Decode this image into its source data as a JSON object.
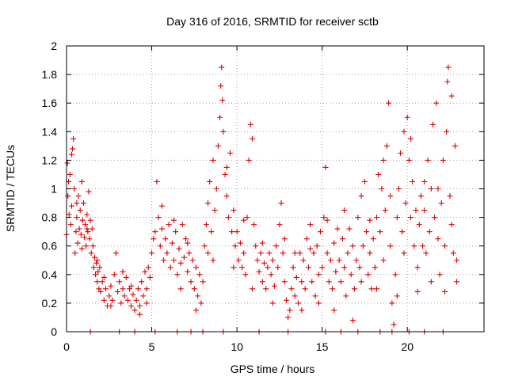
{
  "chart_data": {
    "type": "scatter",
    "title": "Day 316 of 2016, SRMTID for receiver sctb",
    "xlabel": "GPS time / hours",
    "ylabel": "SRMTID / TECUs",
    "xlim": [
      0,
      24.5
    ],
    "ylim": [
      0,
      2
    ],
    "x_ticks": [
      0,
      5,
      10,
      15,
      20
    ],
    "y_ticks": [
      0,
      0.2,
      0.4,
      0.6,
      0.8,
      1,
      1.2,
      1.4,
      1.6,
      1.8,
      2
    ],
    "x_tick_labels": [
      "0",
      "5",
      "10",
      "15",
      "20"
    ],
    "y_tick_labels": [
      "0",
      "0.2",
      "0.4",
      "0.6",
      "0.8",
      "1",
      "1.2",
      "1.4",
      "1.6",
      "1.8",
      "2"
    ],
    "grid": true,
    "marker": "+",
    "color": "#dd0000",
    "series": [
      {
        "name": "SRMTID",
        "points": [
          [
            0.0,
            0.68
          ],
          [
            0.05,
            1.18
          ],
          [
            0.08,
            0.95
          ],
          [
            0.12,
            1.05
          ],
          [
            0.15,
            0.82
          ],
          [
            0.2,
            1.1
          ],
          [
            0.25,
            0.75
          ],
          [
            0.3,
            1.24
          ],
          [
            0.35,
            1.28
          ],
          [
            0.4,
            1.35
          ],
          [
            0.45,
            1.0
          ],
          [
            0.5,
            0.55
          ],
          [
            0.55,
            0.7
          ],
          [
            0.6,
            0.8
          ],
          [
            0.65,
            0.62
          ],
          [
            0.7,
            0.95
          ],
          [
            0.75,
            0.72
          ],
          [
            0.8,
            0.85
          ],
          [
            0.85,
            0.68
          ],
          [
            0.9,
            1.05
          ],
          [
            0.95,
            0.78
          ],
          [
            1.0,
            0.9
          ],
          [
            1.05,
            0.66
          ],
          [
            1.1,
            0.75
          ],
          [
            1.15,
            0.6
          ],
          [
            1.2,
            0.82
          ],
          [
            1.25,
            0.7
          ],
          [
            1.3,
            0.98
          ],
          [
            1.35,
            0.65
          ],
          [
            1.4,
            0.78
          ],
          [
            1.45,
            0.55
          ],
          [
            1.5,
            0.72
          ],
          [
            1.55,
            0.6
          ],
          [
            1.6,
            0.45
          ],
          [
            1.65,
            0.52
          ],
          [
            1.7,
            0.4
          ],
          [
            1.75,
            0.48
          ],
          [
            1.8,
            0.35
          ],
          [
            1.85,
            0.42
          ],
          [
            1.9,
            0.3
          ],
          [
            1.95,
            0.45
          ],
          [
            2.0,
            0.28
          ],
          [
            2.1,
            0.35
          ],
          [
            2.2,
            0.22
          ],
          [
            2.3,
            0.3
          ],
          [
            2.4,
            0.18
          ],
          [
            2.5,
            0.25
          ],
          [
            2.6,
            0.32
          ],
          [
            2.7,
            0.22
          ],
          [
            2.8,
            0.4
          ],
          [
            2.9,
            0.55
          ],
          [
            3.0,
            0.28
          ],
          [
            3.1,
            0.35
          ],
          [
            3.2,
            0.2
          ],
          [
            3.3,
            0.3
          ],
          [
            3.4,
            0.25
          ],
          [
            3.5,
            0.38
          ],
          [
            3.6,
            0.22
          ],
          [
            3.7,
            0.3
          ],
          [
            3.8,
            0.18
          ],
          [
            3.9,
            0.26
          ],
          [
            4.0,
            0.15
          ],
          [
            4.1,
            0.22
          ],
          [
            4.2,
            0.3
          ],
          [
            4.3,
            0.18
          ],
          [
            4.4,
            0.35
          ],
          [
            4.5,
            0.25
          ],
          [
            4.6,
            0.42
          ],
          [
            4.7,
            0.3
          ],
          [
            4.8,
            0.45
          ],
          [
            4.9,
            0.38
          ],
          [
            5.0,
            0.55
          ],
          [
            5.1,
            0.65
          ],
          [
            5.2,
            0.7
          ],
          [
            5.3,
            1.05
          ],
          [
            5.4,
            0.8
          ],
          [
            5.5,
            0.6
          ],
          [
            5.6,
            0.72
          ],
          [
            5.7,
            0.5
          ],
          [
            5.8,
            0.65
          ],
          [
            5.9,
            0.55
          ],
          [
            6.0,
            0.75
          ],
          [
            6.1,
            0.45
          ],
          [
            6.2,
            0.62
          ],
          [
            6.3,
            0.5
          ],
          [
            6.4,
            0.7
          ],
          [
            6.5,
            0.4
          ],
          [
            6.6,
            0.58
          ],
          [
            6.7,
            0.48
          ],
          [
            6.8,
            0.75
          ],
          [
            6.9,
            0.52
          ],
          [
            7.0,
            0.65
          ],
          [
            7.1,
            0.42
          ],
          [
            7.2,
            0.55
          ],
          [
            7.3,
            0.35
          ],
          [
            7.4,
            0.5
          ],
          [
            7.5,
            0.3
          ],
          [
            7.6,
            0.45
          ],
          [
            7.7,
            0.25
          ],
          [
            7.8,
            0.4
          ],
          [
            7.9,
            0.2
          ],
          [
            8.0,
            0.35
          ],
          [
            8.1,
            0.6
          ],
          [
            8.2,
            0.75
          ],
          [
            8.3,
            0.9
          ],
          [
            8.4,
            1.05
          ],
          [
            8.5,
            0.7
          ],
          [
            8.6,
            1.2
          ],
          [
            8.7,
            0.85
          ],
          [
            8.8,
            1.0
          ],
          [
            8.9,
            1.3
          ],
          [
            9.0,
            1.5
          ],
          [
            9.05,
            1.72
          ],
          [
            9.1,
            1.85
          ],
          [
            9.15,
            1.62
          ],
          [
            9.2,
            1.4
          ],
          [
            9.3,
            1.1
          ],
          [
            9.4,
            0.95
          ],
          [
            9.5,
            0.8
          ],
          [
            9.6,
            1.25
          ],
          [
            9.7,
            0.7
          ],
          [
            9.8,
            0.85
          ],
          [
            9.9,
            0.6
          ],
          [
            10.0,
            0.7
          ],
          [
            10.1,
            0.5
          ],
          [
            10.2,
            0.62
          ],
          [
            10.3,
            0.45
          ],
          [
            10.4,
            0.55
          ],
          [
            10.5,
            0.4
          ],
          [
            10.6,
            0.8
          ],
          [
            10.7,
            1.2
          ],
          [
            10.8,
            1.45
          ],
          [
            10.9,
            1.35
          ],
          [
            11.0,
            0.75
          ],
          [
            11.1,
            0.6
          ],
          [
            11.2,
            0.5
          ],
          [
            11.3,
            0.42
          ],
          [
            11.4,
            0.55
          ],
          [
            11.5,
            0.35
          ],
          [
            11.6,
            0.48
          ],
          [
            11.7,
            0.3
          ],
          [
            11.8,
            0.45
          ],
          [
            11.9,
            0.55
          ],
          [
            12.0,
            0.4
          ],
          [
            12.1,
            0.5
          ],
          [
            12.2,
            0.32
          ],
          [
            12.3,
            0.6
          ],
          [
            12.4,
            0.45
          ],
          [
            12.5,
            0.75
          ],
          [
            12.6,
            0.9
          ],
          [
            12.7,
            0.55
          ],
          [
            12.8,
            0.35
          ],
          [
            12.9,
            0.22
          ],
          [
            13.0,
            0.1
          ],
          [
            13.1,
            0.15
          ],
          [
            13.2,
            0.3
          ],
          [
            13.3,
            0.45
          ],
          [
            13.4,
            0.25
          ],
          [
            13.5,
            0.38
          ],
          [
            13.6,
            0.2
          ],
          [
            13.7,
            0.55
          ],
          [
            13.8,
            0.35
          ],
          [
            13.9,
            0.5
          ],
          [
            14.0,
            0.3
          ],
          [
            14.1,
            0.65
          ],
          [
            14.2,
            0.45
          ],
          [
            14.3,
            0.75
          ],
          [
            14.4,
            0.35
          ],
          [
            14.5,
            0.55
          ],
          [
            14.6,
            0.25
          ],
          [
            14.7,
            0.6
          ],
          [
            14.8,
            0.4
          ],
          [
            14.9,
            0.7
          ],
          [
            15.0,
            0.45
          ],
          [
            15.1,
            0.8
          ],
          [
            15.2,
            1.15
          ],
          [
            15.3,
            0.55
          ],
          [
            15.4,
            0.35
          ],
          [
            15.5,
            0.5
          ],
          [
            15.6,
            0.3
          ],
          [
            15.7,
            0.62
          ],
          [
            15.8,
            0.42
          ],
          [
            15.9,
            0.72
          ],
          [
            16.0,
            0.5
          ],
          [
            16.1,
            0.35
          ],
          [
            16.2,
            0.65
          ],
          [
            16.3,
            0.45
          ],
          [
            16.4,
            0.25
          ],
          [
            16.5,
            0.55
          ],
          [
            16.6,
            0.72
          ],
          [
            16.7,
            0.4
          ],
          [
            16.8,
            0.6
          ],
          [
            16.9,
            0.3
          ],
          [
            17.0,
            0.5
          ],
          [
            17.1,
            0.8
          ],
          [
            17.2,
            0.45
          ],
          [
            17.3,
            0.95
          ],
          [
            17.4,
            0.6
          ],
          [
            17.5,
            1.05
          ],
          [
            17.6,
            0.7
          ],
          [
            17.7,
            0.4
          ],
          [
            17.8,
            0.55
          ],
          [
            17.9,
            0.3
          ],
          [
            18.0,
            0.65
          ],
          [
            18.1,
            0.45
          ],
          [
            18.2,
            0.8
          ],
          [
            18.3,
            1.1
          ],
          [
            18.4,
            0.7
          ],
          [
            18.5,
            1.0
          ],
          [
            18.6,
            0.5
          ],
          [
            18.7,
            0.85
          ],
          [
            18.8,
            1.3
          ],
          [
            18.9,
            1.6
          ],
          [
            19.0,
            0.6
          ],
          [
            19.1,
            0.2
          ],
          [
            19.2,
            0.05
          ],
          [
            19.3,
            0.4
          ],
          [
            19.4,
            0.8
          ],
          [
            19.5,
            1.0
          ],
          [
            19.6,
            1.25
          ],
          [
            19.7,
            0.7
          ],
          [
            19.8,
            1.4
          ],
          [
            19.9,
            0.9
          ],
          [
            20.0,
            1.5
          ],
          [
            20.1,
            1.2
          ],
          [
            20.2,
            0.8
          ],
          [
            20.3,
            1.05
          ],
          [
            20.4,
            0.6
          ],
          [
            20.5,
            0.85
          ],
          [
            20.6,
            0.45
          ],
          [
            20.7,
            0.75
          ],
          [
            20.8,
            0.95
          ],
          [
            20.9,
            0.6
          ],
          [
            21.0,
            0.85
          ],
          [
            21.1,
            0.55
          ],
          [
            21.2,
            1.2
          ],
          [
            21.3,
            0.7
          ],
          [
            21.4,
            1.0
          ],
          [
            21.5,
            1.45
          ],
          [
            21.6,
            0.8
          ],
          [
            21.7,
            1.6
          ],
          [
            21.8,
            0.65
          ],
          [
            21.9,
            0.4
          ],
          [
            22.0,
            0.9
          ],
          [
            22.1,
            1.2
          ],
          [
            22.2,
            0.6
          ],
          [
            22.3,
            1.4
          ],
          [
            22.35,
            1.75
          ],
          [
            22.4,
            1.85
          ],
          [
            22.5,
            0.95
          ],
          [
            22.6,
            0.75
          ],
          [
            22.7,
            0.55
          ],
          [
            22.8,
            1.3
          ],
          [
            22.9,
            0.35
          ],
          [
            0.3,
            0.88
          ],
          [
            0.6,
            0.9
          ],
          [
            0.9,
            0.58
          ],
          [
            1.2,
            0.72
          ],
          [
            1.8,
            0.5
          ],
          [
            2.2,
            0.38
          ],
          [
            2.6,
            0.18
          ],
          [
            3.3,
            0.42
          ],
          [
            3.8,
            0.32
          ],
          [
            4.3,
            0.12
          ],
          [
            4.7,
            0.2
          ],
          [
            5.6,
            0.88
          ],
          [
            6.3,
            0.78
          ],
          [
            6.7,
            0.3
          ],
          [
            7.1,
            0.62
          ],
          [
            7.6,
            0.15
          ],
          [
            8.3,
            0.55
          ],
          [
            8.6,
            0.5
          ],
          [
            9.4,
            1.15
          ],
          [
            9.8,
            0.45
          ],
          [
            10.4,
            0.78
          ],
          [
            10.9,
            0.3
          ],
          [
            11.5,
            0.62
          ],
          [
            12.1,
            0.2
          ],
          [
            12.8,
            0.65
          ],
          [
            13.4,
            0.55
          ],
          [
            13.8,
            0.15
          ],
          [
            14.3,
            0.58
          ],
          [
            14.8,
            0.2
          ],
          [
            15.3,
            0.78
          ],
          [
            15.7,
            0.15
          ],
          [
            16.3,
            0.85
          ],
          [
            16.8,
            0.08
          ],
          [
            17.3,
            0.35
          ],
          [
            17.8,
            0.78
          ],
          [
            18.2,
            0.3
          ],
          [
            18.6,
            1.2
          ],
          [
            19.0,
            0.95
          ],
          [
            19.4,
            0.25
          ],
          [
            19.8,
            0.55
          ],
          [
            20.2,
            1.35
          ],
          [
            20.6,
            0.28
          ],
          [
            21.0,
            1.05
          ],
          [
            21.4,
            0.35
          ],
          [
            21.8,
            1.0
          ],
          [
            22.2,
            0.28
          ],
          [
            22.6,
            1.65
          ],
          [
            22.9,
            0.5
          ],
          [
            1.4,
            0.0
          ],
          [
            3.1,
            0.0
          ],
          [
            4.0,
            0.0
          ],
          [
            5.2,
            0.0
          ],
          [
            6.5,
            0.0
          ],
          [
            7.3,
            0.0
          ],
          [
            8.0,
            0.0
          ],
          [
            9.2,
            0.0
          ],
          [
            11.3,
            0.0
          ],
          [
            13.0,
            0.0
          ],
          [
            15.2,
            0.0
          ],
          [
            16.1,
            0.0
          ],
          [
            17.1,
            0.0
          ],
          [
            18.4,
            0.0
          ],
          [
            19.1,
            0.0
          ],
          [
            20.1,
            0.0
          ],
          [
            21.0,
            0.0
          ],
          [
            22.1,
            0.0
          ]
        ]
      }
    ]
  }
}
